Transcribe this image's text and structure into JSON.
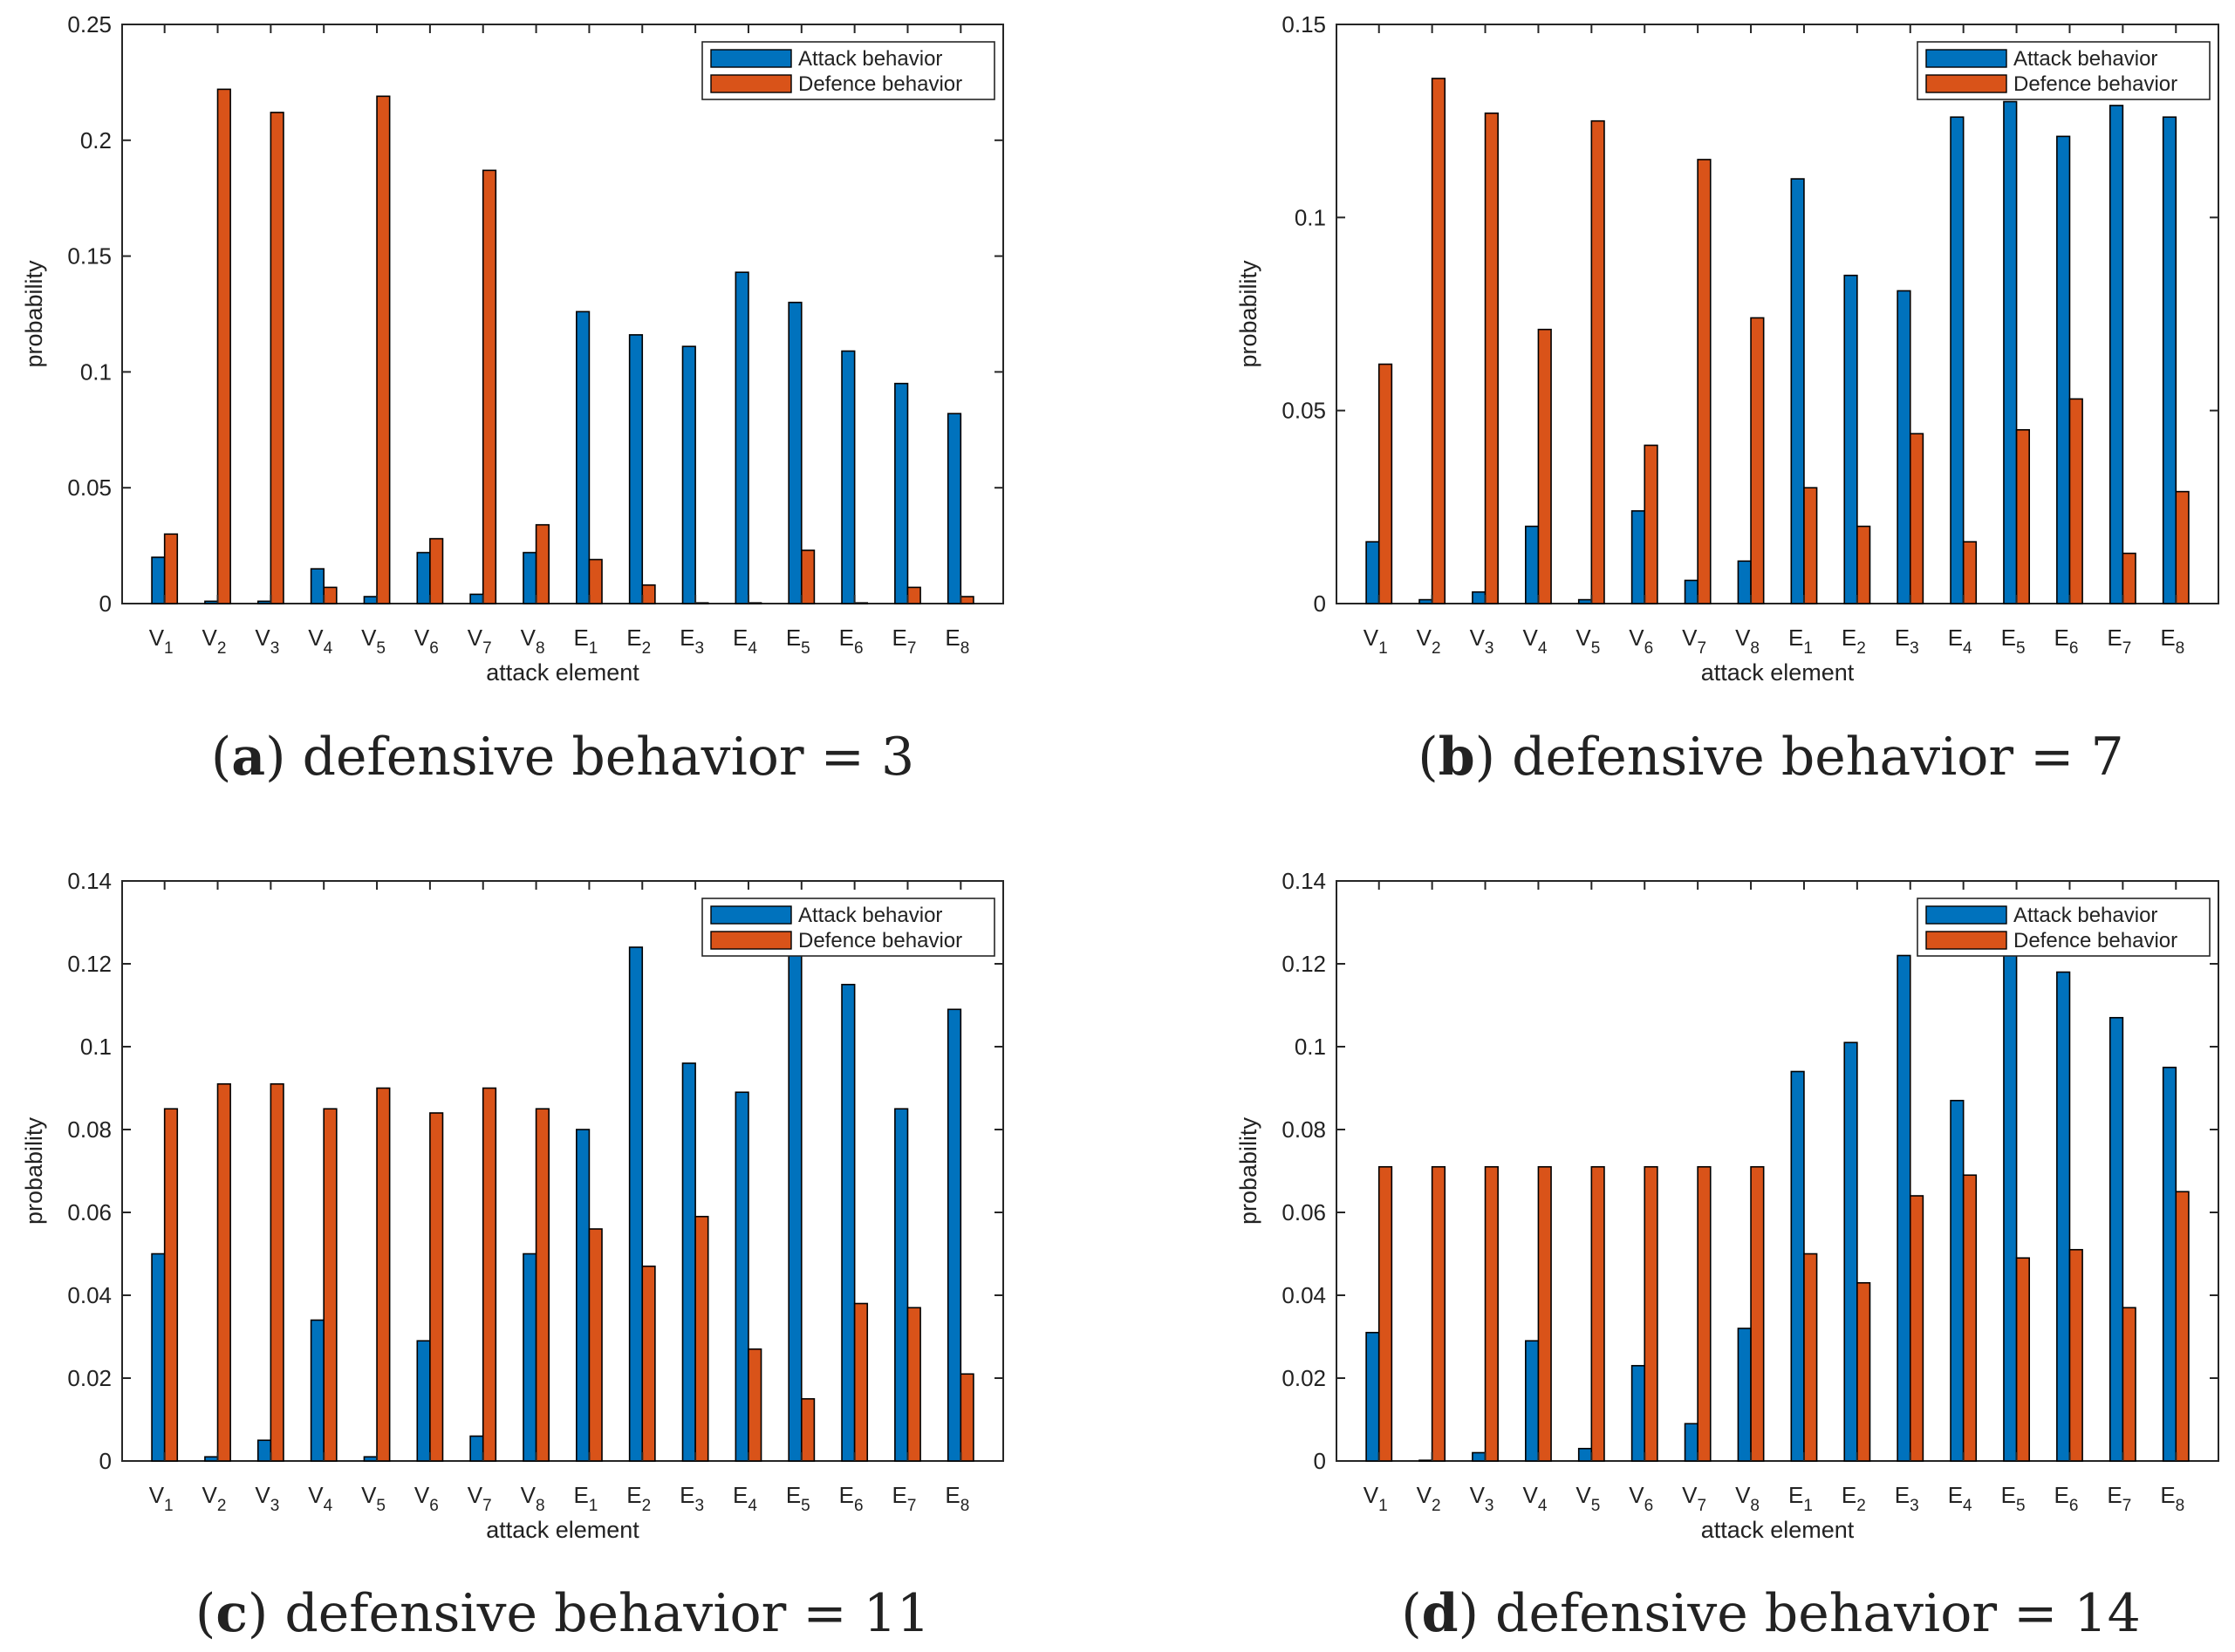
{
  "figure": {
    "series_names": [
      "Attack behavior",
      "Defence behavior"
    ],
    "colors": {
      "attack": "#0072BD",
      "defence": "#D95319",
      "axis": "#262626",
      "bar_edge": "#000000"
    }
  },
  "chart_data": [
    {
      "type": "bar",
      "panel_letter": "a",
      "caption": ") defensive behavior = 3",
      "xlabel": "attack element",
      "ylabel": "probability",
      "ylim": [
        0,
        0.25
      ],
      "yticks": [
        "0",
        "0.05",
        "0.1",
        "0.15",
        "0.2",
        "0.25"
      ],
      "ytick_values": [
        0,
        0.05,
        0.1,
        0.15,
        0.2,
        0.25
      ],
      "legend_position": "top-right",
      "categories": [
        {
          "base": "V",
          "sub": "1"
        },
        {
          "base": "V",
          "sub": "2"
        },
        {
          "base": "V",
          "sub": "3"
        },
        {
          "base": "V",
          "sub": "4"
        },
        {
          "base": "V",
          "sub": "5"
        },
        {
          "base": "V",
          "sub": "6"
        },
        {
          "base": "V",
          "sub": "7"
        },
        {
          "base": "V",
          "sub": "8"
        },
        {
          "base": "E",
          "sub": "1"
        },
        {
          "base": "E",
          "sub": "2"
        },
        {
          "base": "E",
          "sub": "3"
        },
        {
          "base": "E",
          "sub": "4"
        },
        {
          "base": "E",
          "sub": "5"
        },
        {
          "base": "E",
          "sub": "6"
        },
        {
          "base": "E",
          "sub": "7"
        },
        {
          "base": "E",
          "sub": "8"
        }
      ],
      "series": [
        {
          "name": "Attack behavior",
          "values": [
            0.02,
            0.001,
            0.001,
            0.015,
            0.003,
            0.022,
            0.004,
            0.022,
            0.126,
            0.116,
            0.111,
            0.143,
            0.13,
            0.109,
            0.095,
            0.082
          ]
        },
        {
          "name": "Defence behavior",
          "values": [
            0.03,
            0.222,
            0.212,
            0.007,
            0.219,
            0.028,
            0.187,
            0.034,
            0.019,
            0.008,
            0.0,
            0.0,
            0.023,
            0.0,
            0.007,
            0.003
          ]
        }
      ]
    },
    {
      "type": "bar",
      "panel_letter": "b",
      "caption": ") defensive behavior = 7",
      "xlabel": "attack element",
      "ylabel": "probability",
      "ylim": [
        0,
        0.15
      ],
      "yticks": [
        "0",
        "0.05",
        "0.1",
        "0.15"
      ],
      "ytick_values": [
        0,
        0.05,
        0.1,
        0.15
      ],
      "legend_position": "top-right",
      "categories": [
        {
          "base": "V",
          "sub": "1"
        },
        {
          "base": "V",
          "sub": "2"
        },
        {
          "base": "V",
          "sub": "3"
        },
        {
          "base": "V",
          "sub": "4"
        },
        {
          "base": "V",
          "sub": "5"
        },
        {
          "base": "V",
          "sub": "6"
        },
        {
          "base": "V",
          "sub": "7"
        },
        {
          "base": "V",
          "sub": "8"
        },
        {
          "base": "E",
          "sub": "1"
        },
        {
          "base": "E",
          "sub": "2"
        },
        {
          "base": "E",
          "sub": "3"
        },
        {
          "base": "E",
          "sub": "4"
        },
        {
          "base": "E",
          "sub": "5"
        },
        {
          "base": "E",
          "sub": "6"
        },
        {
          "base": "E",
          "sub": "7"
        },
        {
          "base": "E",
          "sub": "8"
        }
      ],
      "series": [
        {
          "name": "Attack behavior",
          "values": [
            0.016,
            0.001,
            0.003,
            0.02,
            0.001,
            0.024,
            0.006,
            0.011,
            0.11,
            0.085,
            0.081,
            0.126,
            0.13,
            0.121,
            0.129,
            0.126
          ]
        },
        {
          "name": "Defence behavior",
          "values": [
            0.062,
            0.136,
            0.127,
            0.071,
            0.125,
            0.041,
            0.115,
            0.074,
            0.03,
            0.02,
            0.044,
            0.016,
            0.045,
            0.053,
            0.013,
            0.029
          ]
        }
      ]
    },
    {
      "type": "bar",
      "panel_letter": "c",
      "caption": ") defensive behavior = 11",
      "xlabel": "attack element",
      "ylabel": "probability",
      "ylim": [
        0,
        0.14
      ],
      "yticks": [
        "0",
        "0.02",
        "0.04",
        "0.06",
        "0.08",
        "0.1",
        "0.12",
        "0.14"
      ],
      "ytick_values": [
        0,
        0.02,
        0.04,
        0.06,
        0.08,
        0.1,
        0.12,
        0.14
      ],
      "legend_position": "top-right",
      "categories": [
        {
          "base": "V",
          "sub": "1"
        },
        {
          "base": "V",
          "sub": "2"
        },
        {
          "base": "V",
          "sub": "3"
        },
        {
          "base": "V",
          "sub": "4"
        },
        {
          "base": "V",
          "sub": "5"
        },
        {
          "base": "V",
          "sub": "6"
        },
        {
          "base": "V",
          "sub": "7"
        },
        {
          "base": "V",
          "sub": "8"
        },
        {
          "base": "E",
          "sub": "1"
        },
        {
          "base": "E",
          "sub": "2"
        },
        {
          "base": "E",
          "sub": "3"
        },
        {
          "base": "E",
          "sub": "4"
        },
        {
          "base": "E",
          "sub": "5"
        },
        {
          "base": "E",
          "sub": "6"
        },
        {
          "base": "E",
          "sub": "7"
        },
        {
          "base": "E",
          "sub": "8"
        }
      ],
      "series": [
        {
          "name": "Attack behavior",
          "values": [
            0.05,
            0.001,
            0.005,
            0.034,
            0.001,
            0.029,
            0.006,
            0.05,
            0.08,
            0.124,
            0.096,
            0.089,
            0.122,
            0.115,
            0.085,
            0.109
          ]
        },
        {
          "name": "Defence behavior",
          "values": [
            0.085,
            0.091,
            0.091,
            0.085,
            0.09,
            0.084,
            0.09,
            0.085,
            0.056,
            0.047,
            0.059,
            0.027,
            0.015,
            0.038,
            0.037,
            0.021
          ]
        }
      ]
    },
    {
      "type": "bar",
      "panel_letter": "d",
      "caption": ") defensive behavior = 14",
      "xlabel": "attack element",
      "ylabel": "probability",
      "ylim": [
        0,
        0.14
      ],
      "yticks": [
        "0",
        "0.02",
        "0.04",
        "0.06",
        "0.08",
        "0.1",
        "0.12",
        "0.14"
      ],
      "ytick_values": [
        0,
        0.02,
        0.04,
        0.06,
        0.08,
        0.1,
        0.12,
        0.14
      ],
      "legend_position": "top-right",
      "categories": [
        {
          "base": "V",
          "sub": "1"
        },
        {
          "base": "V",
          "sub": "2"
        },
        {
          "base": "V",
          "sub": "3"
        },
        {
          "base": "V",
          "sub": "4"
        },
        {
          "base": "V",
          "sub": "5"
        },
        {
          "base": "V",
          "sub": "6"
        },
        {
          "base": "V",
          "sub": "7"
        },
        {
          "base": "V",
          "sub": "8"
        },
        {
          "base": "E",
          "sub": "1"
        },
        {
          "base": "E",
          "sub": "2"
        },
        {
          "base": "E",
          "sub": "3"
        },
        {
          "base": "E",
          "sub": "4"
        },
        {
          "base": "E",
          "sub": "5"
        },
        {
          "base": "E",
          "sub": "6"
        },
        {
          "base": "E",
          "sub": "7"
        },
        {
          "base": "E",
          "sub": "8"
        }
      ],
      "series": [
        {
          "name": "Attack behavior",
          "values": [
            0.031,
            0.0,
            0.002,
            0.029,
            0.003,
            0.023,
            0.009,
            0.032,
            0.094,
            0.101,
            0.122,
            0.087,
            0.122,
            0.118,
            0.107,
            0.095
          ]
        },
        {
          "name": "Defence behavior",
          "values": [
            0.071,
            0.071,
            0.071,
            0.071,
            0.071,
            0.071,
            0.071,
            0.071,
            0.05,
            0.043,
            0.064,
            0.069,
            0.049,
            0.051,
            0.037,
            0.065
          ]
        }
      ]
    }
  ]
}
